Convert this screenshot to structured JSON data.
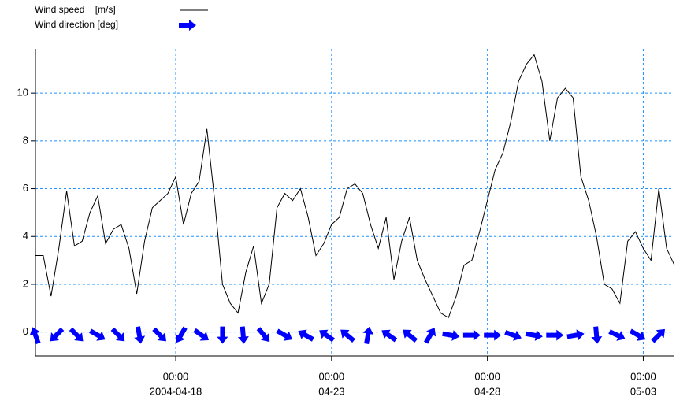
{
  "chart_data": {
    "type": "line",
    "series": [
      {
        "name": "Wind speed    [m/s]",
        "color": "#000000",
        "style": "line",
        "x": [
          "2004-04-13 12:00",
          "2004-04-13 18:00",
          "2004-04-14 00:00",
          "2004-04-14 06:00",
          "2004-04-14 12:00",
          "2004-04-14 18:00",
          "2004-04-15 00:00",
          "2004-04-15 06:00",
          "2004-04-15 12:00",
          "2004-04-15 18:00",
          "2004-04-16 00:00",
          "2004-04-16 06:00",
          "2004-04-16 12:00",
          "2004-04-16 18:00",
          "2004-04-17 00:00",
          "2004-04-17 06:00",
          "2004-04-17 12:00",
          "2004-04-17 18:00",
          "2004-04-18 00:00",
          "2004-04-18 06:00",
          "2004-04-18 12:00",
          "2004-04-18 18:00",
          "2004-04-19 00:00",
          "2004-04-19 06:00",
          "2004-04-19 12:00",
          "2004-04-19 18:00",
          "2004-04-20 00:00",
          "2004-04-20 06:00",
          "2004-04-20 12:00",
          "2004-04-20 18:00",
          "2004-04-21 00:00",
          "2004-04-21 06:00",
          "2004-04-21 12:00",
          "2004-04-21 18:00",
          "2004-04-22 00:00",
          "2004-04-22 06:00",
          "2004-04-22 12:00",
          "2004-04-22 18:00",
          "2004-04-23 00:00",
          "2004-04-23 06:00",
          "2004-04-23 12:00",
          "2004-04-23 18:00",
          "2004-04-24 00:00",
          "2004-04-24 06:00",
          "2004-04-24 12:00",
          "2004-04-24 18:00",
          "2004-04-25 00:00",
          "2004-04-25 06:00",
          "2004-04-25 12:00",
          "2004-04-25 18:00",
          "2004-04-26 00:00",
          "2004-04-26 06:00",
          "2004-04-26 12:00",
          "2004-04-26 18:00",
          "2004-04-27 00:00",
          "2004-04-27 06:00",
          "2004-04-27 12:00",
          "2004-04-27 18:00",
          "2004-04-28 00:00",
          "2004-04-28 06:00",
          "2004-04-28 12:00",
          "2004-04-28 18:00",
          "2004-04-29 00:00",
          "2004-04-29 06:00",
          "2004-04-29 12:00",
          "2004-04-29 18:00",
          "2004-04-30 00:00",
          "2004-04-30 06:00",
          "2004-04-30 12:00",
          "2004-04-30 18:00",
          "2004-05-01 00:00",
          "2004-05-01 06:00",
          "2004-05-01 12:00",
          "2004-05-01 18:00",
          "2004-05-02 00:00",
          "2004-05-02 06:00",
          "2004-05-02 12:00",
          "2004-05-02 18:00",
          "2004-05-03 00:00",
          "2004-05-03 06:00",
          "2004-05-03 12:00",
          "2004-05-03 18:00",
          "2004-05-04 00:00"
        ],
        "values": [
          3.2,
          3.2,
          1.5,
          3.5,
          5.9,
          3.6,
          3.8,
          5.0,
          5.7,
          3.7,
          4.3,
          4.5,
          3.5,
          1.6,
          3.8,
          5.2,
          5.5,
          5.8,
          6.5,
          4.5,
          5.8,
          6.3,
          8.5,
          5.5,
          2.0,
          1.2,
          0.8,
          2.5,
          3.6,
          1.2,
          2.0,
          5.2,
          5.8,
          5.5,
          6.0,
          4.8,
          3.2,
          3.7,
          4.5,
          4.8,
          6.0,
          6.2,
          5.8,
          4.5,
          3.5,
          4.8,
          2.2,
          3.8,
          4.8,
          3.0,
          2.2,
          1.5,
          0.8,
          0.6,
          1.5,
          2.8,
          3.0,
          4.2,
          5.5,
          6.8,
          7.5,
          8.8,
          10.5,
          11.2,
          11.6,
          10.5,
          8.0,
          9.8,
          10.2,
          9.8,
          6.5,
          5.5,
          4.0,
          2.0,
          1.8,
          1.2,
          3.8,
          4.2,
          3.5,
          3.0,
          6.0,
          3.5,
          2.8
        ]
      },
      {
        "name": "Wind direction [deg]",
        "color": "#0000ff",
        "style": "arrows",
        "x": [
          "2004-04-13 12:00",
          "2004-04-14 04:00",
          "2004-04-14 20:00",
          "2004-04-15 12:00",
          "2004-04-16 04:00",
          "2004-04-16 20:00",
          "2004-04-17 12:00",
          "2004-04-18 04:00",
          "2004-04-18 20:00",
          "2004-04-19 12:00",
          "2004-04-20 04:00",
          "2004-04-20 20:00",
          "2004-04-21 12:00",
          "2004-04-22 04:00",
          "2004-04-22 20:00",
          "2004-04-23 12:00",
          "2004-04-24 04:00",
          "2004-04-24 20:00",
          "2004-04-25 12:00",
          "2004-04-26 04:00",
          "2004-04-26 20:00",
          "2004-04-27 12:00",
          "2004-04-28 04:00",
          "2004-04-28 20:00",
          "2004-04-29 12:00",
          "2004-04-30 04:00",
          "2004-04-30 20:00",
          "2004-05-01 12:00",
          "2004-05-02 04:00",
          "2004-05-02 20:00",
          "2004-05-03 12:00"
        ],
        "values": [
          340,
          225,
          135,
          120,
          135,
          170,
          135,
          210,
          125,
          180,
          175,
          140,
          120,
          300,
          305,
          310,
          10,
          305,
          310,
          30,
          100,
          90,
          90,
          110,
          100,
          90,
          80,
          175,
          115,
          120,
          45
        ]
      }
    ],
    "xlim": [
      "2004-04-13 12:00",
      "2004-05-04 00:00"
    ],
    "xticks": [
      {
        "value": "2004-04-18 00:00",
        "label": [
          "00:00",
          "2004-04-18"
        ]
      },
      {
        "value": "2004-04-23 00:00",
        "label": [
          "00:00",
          "04-23"
        ]
      },
      {
        "value": "2004-04-28 00:00",
        "label": [
          "00:00",
          "04-28"
        ]
      },
      {
        "value": "2004-05-03 00:00",
        "label": [
          "00:00",
          "05-03"
        ]
      }
    ],
    "ylim": [
      -1,
      11.85
    ],
    "yticks": [
      0,
      2,
      4,
      6,
      8,
      10
    ],
    "grid": true,
    "grid_color": "#1e90ff",
    "legend": "top-left"
  }
}
